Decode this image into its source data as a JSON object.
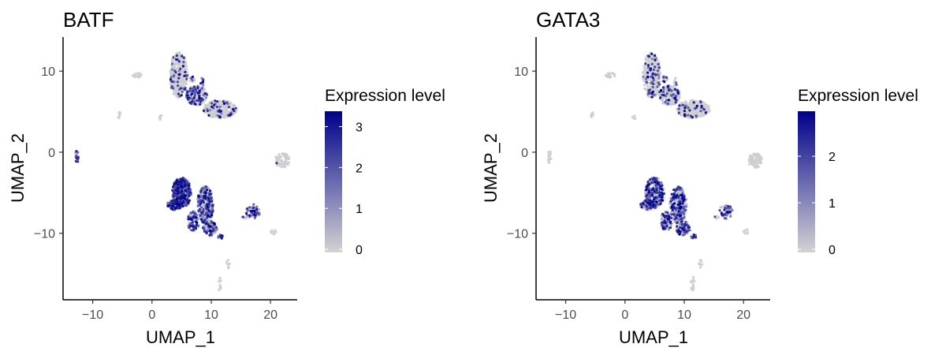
{
  "chart_data": [
    {
      "type": "scatter",
      "title": "BATF",
      "xlabel": "UMAP_1",
      "ylabel": "UMAP_2",
      "xlim": [
        -15,
        24.5
      ],
      "ylim": [
        -18.2,
        14.2
      ],
      "xticks": [
        -10,
        0,
        10,
        20
      ],
      "yticks": [
        -10,
        0,
        10
      ],
      "xtick_labels": [
        "−10",
        "0",
        "10",
        "20"
      ],
      "ytick_labels": [
        "−10",
        "0",
        "10"
      ],
      "grid": false,
      "legend": {
        "title": "Expression level",
        "placement": "right",
        "range": [
          0,
          3.3
        ],
        "ticks": [
          0,
          1,
          2,
          3
        ],
        "tick_labels": [
          "0",
          "1",
          "2",
          "3"
        ],
        "color_low": "#d3d3d3",
        "color_high": "#00008b"
      },
      "clusters": [
        {
          "cx": 4.5,
          "cy": 9.5,
          "rx": 1.5,
          "ry": 2.8,
          "n": 380,
          "expr": [
            0.05,
            0.08
          ]
        },
        {
          "cx": 7.5,
          "cy": 7.0,
          "rx": 1.8,
          "ry": 1.2,
          "n": 260,
          "expr": [
            0.06,
            0.25
          ]
        },
        {
          "cx": 11.5,
          "cy": 5.3,
          "rx": 2.8,
          "ry": 1.1,
          "n": 360,
          "expr": [
            0.05,
            0.1
          ]
        },
        {
          "cx": 6.8,
          "cy": 9.0,
          "rx": 0.5,
          "ry": 0.4,
          "n": 18,
          "expr": [
            0.04,
            0.2
          ]
        },
        {
          "cx": 8.5,
          "cy": 8.7,
          "rx": 0.3,
          "ry": 0.6,
          "n": 14,
          "expr": [
            0.04,
            0.2
          ]
        },
        {
          "cx": -2.5,
          "cy": 9.5,
          "rx": 0.8,
          "ry": 0.3,
          "n": 22,
          "expr": [
            0.03,
            0.0
          ]
        },
        {
          "cx": -5.5,
          "cy": 4.6,
          "rx": 0.25,
          "ry": 0.4,
          "n": 8,
          "expr": [
            0.03,
            0.0
          ]
        },
        {
          "cx": 1.5,
          "cy": 4.3,
          "rx": 0.25,
          "ry": 0.35,
          "n": 7,
          "expr": [
            0.03,
            0.0
          ]
        },
        {
          "cx": -12.7,
          "cy": -0.6,
          "rx": 0.3,
          "ry": 0.8,
          "n": 18,
          "expr": [
            0.35,
            0.6
          ]
        },
        {
          "cx": 22.0,
          "cy": -1.0,
          "rx": 1.2,
          "ry": 0.9,
          "n": 70,
          "expr": [
            0.05,
            0.02
          ]
        },
        {
          "cx": 5.0,
          "cy": -5.0,
          "rx": 1.6,
          "ry": 1.9,
          "n": 300,
          "expr": [
            0.55,
            0.75
          ]
        },
        {
          "cx": 3.8,
          "cy": -6.5,
          "rx": 1.3,
          "ry": 0.6,
          "n": 110,
          "expr": [
            0.35,
            0.5
          ]
        },
        {
          "cx": 9.0,
          "cy": -6.5,
          "rx": 1.4,
          "ry": 2.3,
          "n": 280,
          "expr": [
            0.25,
            0.45
          ]
        },
        {
          "cx": 9.8,
          "cy": -9.4,
          "rx": 1.2,
          "ry": 0.9,
          "n": 80,
          "expr": [
            0.25,
            0.45
          ]
        },
        {
          "cx": 7.0,
          "cy": -8.5,
          "rx": 1.0,
          "ry": 1.2,
          "n": 90,
          "expr": [
            0.3,
            0.5
          ]
        },
        {
          "cx": 11.6,
          "cy": -10.4,
          "rx": 0.5,
          "ry": 0.25,
          "n": 15,
          "expr": [
            0.45,
            0.8
          ]
        },
        {
          "cx": 17.0,
          "cy": -7.3,
          "rx": 1.2,
          "ry": 0.9,
          "n": 45,
          "expr": [
            0.3,
            0.7
          ]
        },
        {
          "cx": 15.6,
          "cy": -8.0,
          "rx": 0.5,
          "ry": 0.2,
          "n": 10,
          "expr": [
            0.05,
            0.1
          ]
        },
        {
          "cx": 20.5,
          "cy": -9.8,
          "rx": 0.5,
          "ry": 0.3,
          "n": 10,
          "expr": [
            0.03,
            0.0
          ]
        },
        {
          "cx": 12.8,
          "cy": -13.8,
          "rx": 0.3,
          "ry": 0.6,
          "n": 8,
          "expr": [
            0.03,
            0.0
          ]
        },
        {
          "cx": 11.4,
          "cy": -16.2,
          "rx": 0.3,
          "ry": 1.0,
          "n": 14,
          "expr": [
            0.03,
            0.0
          ]
        }
      ]
    },
    {
      "type": "scatter",
      "title": "GATA3",
      "xlabel": "UMAP_1",
      "ylabel": "UMAP_2",
      "xlim": [
        -15,
        24.5
      ],
      "ylim": [
        -18.2,
        14.2
      ],
      "xticks": [
        -10,
        0,
        10,
        20
      ],
      "yticks": [
        -10,
        0,
        10
      ],
      "xtick_labels": [
        "−10",
        "0",
        "10",
        "20"
      ],
      "ytick_labels": [
        "−10",
        "0",
        "10"
      ],
      "grid": false,
      "legend": {
        "title": "Expression level",
        "placement": "right",
        "range": [
          0,
          2.9
        ],
        "ticks": [
          0,
          1,
          2
        ],
        "tick_labels": [
          "0",
          "1",
          "2"
        ],
        "color_low": "#d3d3d3",
        "color_high": "#00008b"
      },
      "clusters": [
        {
          "cx": 4.5,
          "cy": 9.5,
          "rx": 1.5,
          "ry": 2.8,
          "n": 380,
          "expr": [
            0.04,
            0.15
          ]
        },
        {
          "cx": 7.5,
          "cy": 7.0,
          "rx": 1.8,
          "ry": 1.2,
          "n": 260,
          "expr": [
            0.05,
            0.2
          ]
        },
        {
          "cx": 11.5,
          "cy": 5.3,
          "rx": 2.8,
          "ry": 1.1,
          "n": 360,
          "expr": [
            0.03,
            0.1
          ]
        },
        {
          "cx": 6.8,
          "cy": 9.0,
          "rx": 0.5,
          "ry": 0.4,
          "n": 18,
          "expr": [
            0.05,
            0.2
          ]
        },
        {
          "cx": 8.5,
          "cy": 8.7,
          "rx": 0.3,
          "ry": 0.6,
          "n": 14,
          "expr": [
            0.05,
            0.2
          ]
        },
        {
          "cx": -2.5,
          "cy": 9.5,
          "rx": 0.8,
          "ry": 0.3,
          "n": 22,
          "expr": [
            0.03,
            0.0
          ]
        },
        {
          "cx": -5.5,
          "cy": 4.6,
          "rx": 0.25,
          "ry": 0.4,
          "n": 8,
          "expr": [
            0.03,
            0.0
          ]
        },
        {
          "cx": 1.5,
          "cy": 4.3,
          "rx": 0.25,
          "ry": 0.35,
          "n": 7,
          "expr": [
            0.03,
            0.0
          ]
        },
        {
          "cx": -12.7,
          "cy": -0.6,
          "rx": 0.3,
          "ry": 0.8,
          "n": 18,
          "expr": [
            0.03,
            0.0
          ]
        },
        {
          "cx": 22.0,
          "cy": -1.0,
          "rx": 1.2,
          "ry": 0.9,
          "n": 70,
          "expr": [
            0.03,
            0.0
          ]
        },
        {
          "cx": 5.0,
          "cy": -5.0,
          "rx": 1.6,
          "ry": 1.9,
          "n": 300,
          "expr": [
            0.22,
            0.5
          ]
        },
        {
          "cx": 3.8,
          "cy": -6.5,
          "rx": 1.3,
          "ry": 0.6,
          "n": 110,
          "expr": [
            0.18,
            0.4
          ]
        },
        {
          "cx": 9.0,
          "cy": -6.5,
          "rx": 1.4,
          "ry": 2.3,
          "n": 280,
          "expr": [
            0.3,
            0.45
          ]
        },
        {
          "cx": 9.8,
          "cy": -9.4,
          "rx": 1.2,
          "ry": 0.9,
          "n": 80,
          "expr": [
            0.2,
            0.5
          ]
        },
        {
          "cx": 7.0,
          "cy": -8.5,
          "rx": 1.0,
          "ry": 1.2,
          "n": 90,
          "expr": [
            0.25,
            0.5
          ]
        },
        {
          "cx": 11.6,
          "cy": -10.4,
          "rx": 0.5,
          "ry": 0.25,
          "n": 15,
          "expr": [
            0.4,
            0.6
          ]
        },
        {
          "cx": 17.0,
          "cy": -7.3,
          "rx": 1.2,
          "ry": 0.9,
          "n": 45,
          "expr": [
            0.1,
            0.6
          ]
        },
        {
          "cx": 15.6,
          "cy": -8.0,
          "rx": 0.5,
          "ry": 0.2,
          "n": 10,
          "expr": [
            0.05,
            0.1
          ]
        },
        {
          "cx": 20.5,
          "cy": -9.8,
          "rx": 0.5,
          "ry": 0.3,
          "n": 10,
          "expr": [
            0.03,
            0.0
          ]
        },
        {
          "cx": 12.8,
          "cy": -13.8,
          "rx": 0.3,
          "ry": 0.6,
          "n": 8,
          "expr": [
            0.03,
            0.0
          ]
        },
        {
          "cx": 11.4,
          "cy": -16.2,
          "rx": 0.3,
          "ry": 1.0,
          "n": 14,
          "expr": [
            0.03,
            0.0
          ]
        }
      ]
    }
  ]
}
